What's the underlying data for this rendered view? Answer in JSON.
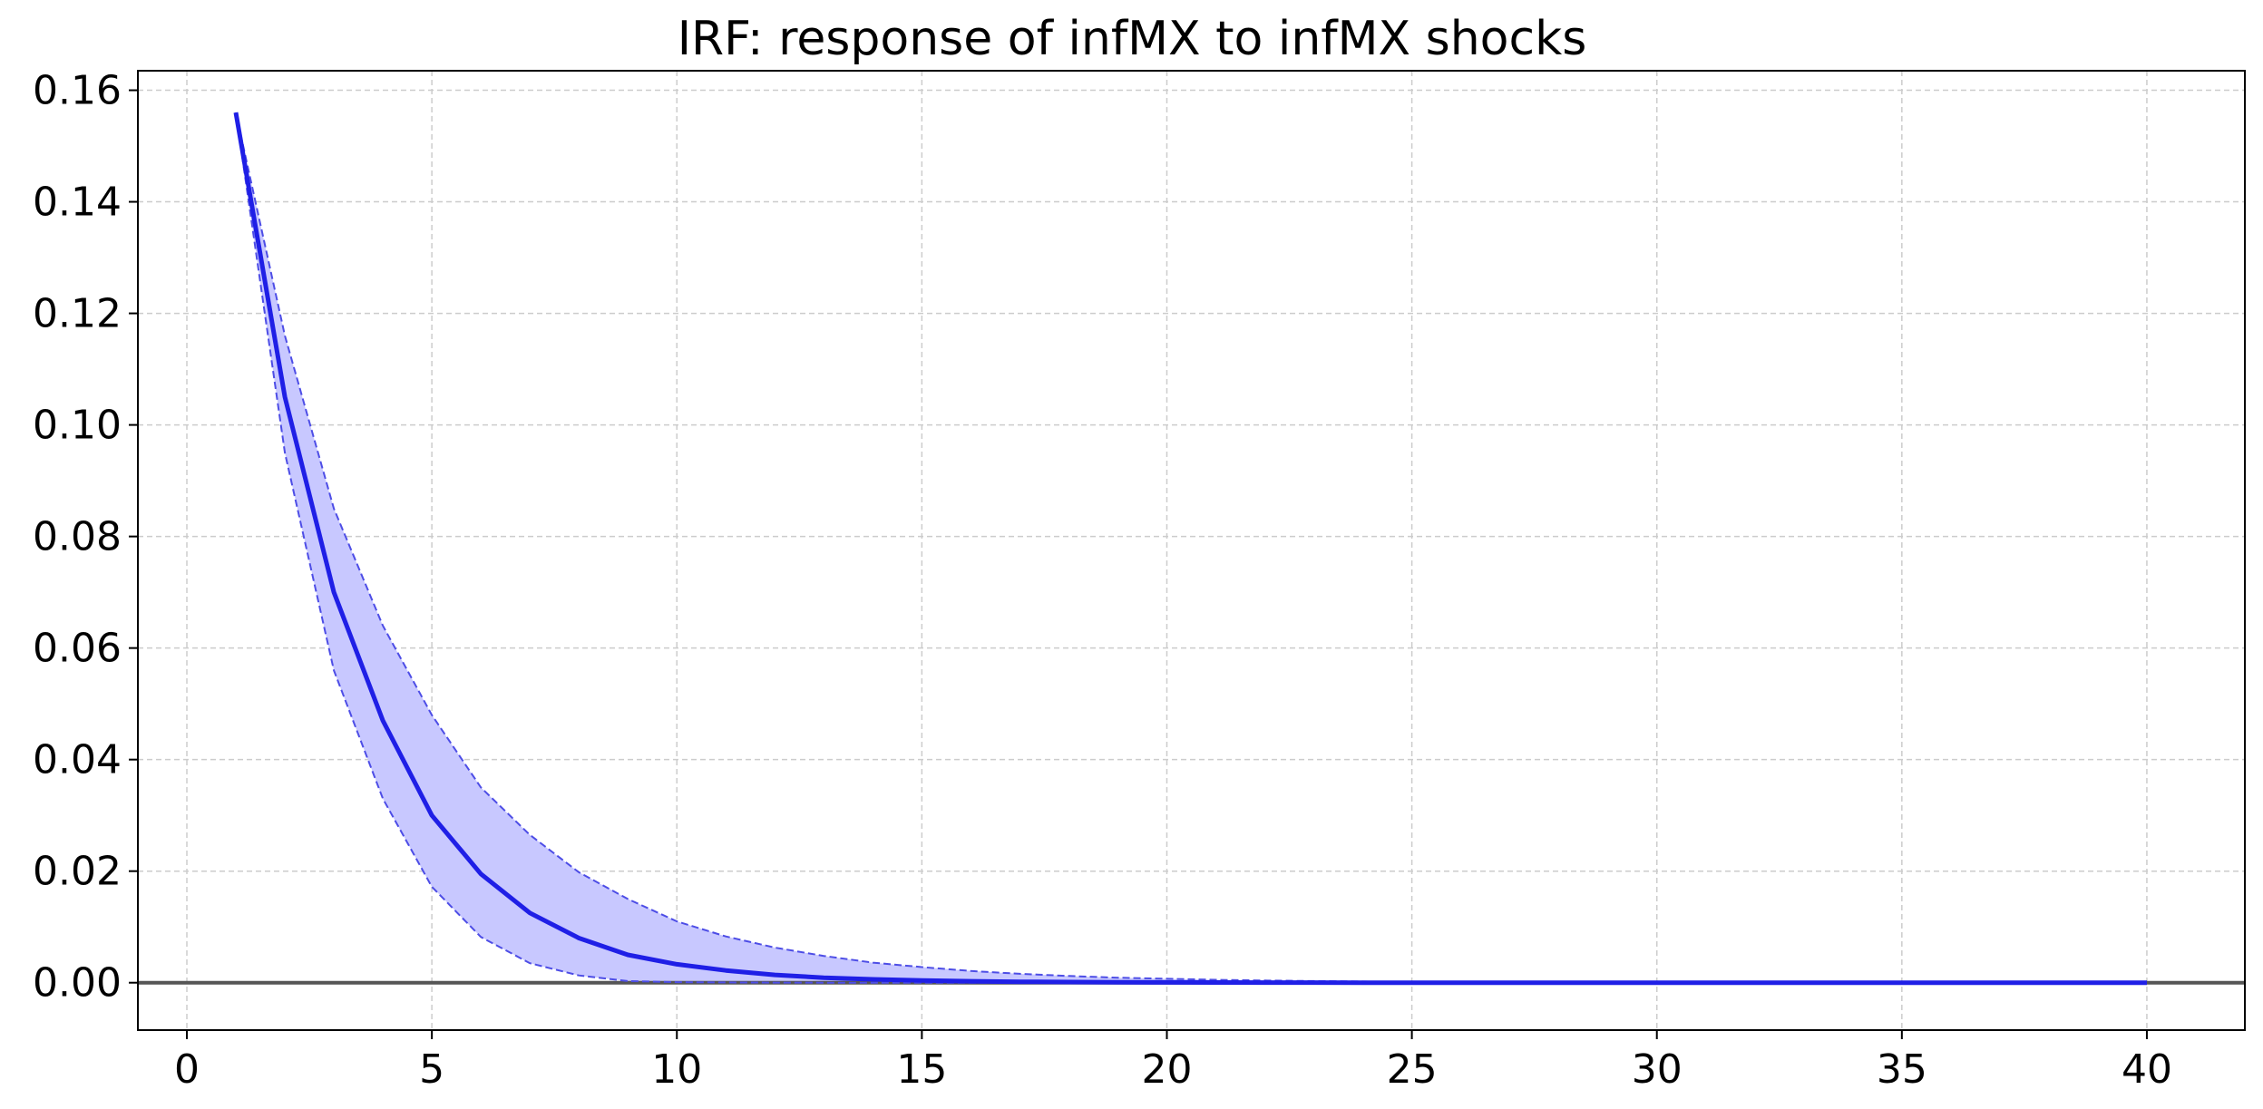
{
  "chart_data": {
    "type": "line",
    "title": "IRF: response of infMX to infMX shocks",
    "xlabel": "",
    "ylabel": "",
    "xlim": [
      -1,
      42
    ],
    "ylim": [
      -0.0085,
      0.1635
    ],
    "xticks": [
      0,
      5,
      10,
      15,
      20,
      25,
      30,
      35,
      40
    ],
    "yticks": [
      0.0,
      0.02,
      0.04,
      0.06,
      0.08,
      0.1,
      0.12,
      0.14,
      0.16
    ],
    "xtick_labels": [
      "0",
      "5",
      "10",
      "15",
      "20",
      "25",
      "30",
      "35",
      "40"
    ],
    "ytick_labels": [
      "0.00",
      "0.02",
      "0.04",
      "0.06",
      "0.08",
      "0.10",
      "0.12",
      "0.14",
      "0.16"
    ],
    "grid": true,
    "zero_line": 0,
    "colors": {
      "line": "#1f1fe6",
      "band_fill": "#c8c8ff",
      "band_edge": "#4d4de6",
      "zero_line": "#555555",
      "grid": "#cccccc"
    },
    "x": [
      1,
      2,
      3,
      4,
      5,
      6,
      7,
      8,
      9,
      10,
      11,
      12,
      13,
      14,
      15,
      16,
      17,
      18,
      19,
      20,
      21,
      22,
      23,
      24,
      25,
      26,
      27,
      28,
      29,
      30,
      31,
      32,
      33,
      34,
      35,
      36,
      37,
      38,
      39,
      40
    ],
    "series": [
      {
        "role": "irf",
        "values": [
          0.156,
          0.105,
          0.07,
          0.047,
          0.03,
          0.0195,
          0.0125,
          0.008,
          0.005,
          0.0033,
          0.0022,
          0.0014,
          0.0009,
          0.0006,
          0.0004,
          0.00026,
          0.00017,
          0.00011,
          7e-05,
          5e-05,
          3e-05,
          2e-05,
          1.3e-05,
          8e-06,
          5e-06,
          3e-06,
          2e-06,
          1.3e-06,
          8e-07,
          5e-07,
          3e-07,
          2e-07,
          1e-07,
          1e-07,
          0,
          0,
          0,
          0,
          0,
          0
        ]
      },
      {
        "role": "upper",
        "values": [
          0.156,
          0.116,
          0.085,
          0.064,
          0.048,
          0.035,
          0.0265,
          0.0198,
          0.015,
          0.011,
          0.0083,
          0.0063,
          0.0048,
          0.0036,
          0.0028,
          0.0021,
          0.0016,
          0.0012,
          0.0009,
          0.0007,
          0.00052,
          0.0004,
          0.0003,
          0.00022,
          0.00017,
          0.00013,
          0.0001,
          7e-05,
          5e-05,
          4e-05,
          3e-05,
          2e-05,
          1.5e-05,
          1.1e-05,
          8e-06,
          6e-06,
          4.5e-06,
          3.4e-06,
          2.5e-06,
          1.9e-06
        ]
      },
      {
        "role": "lower",
        "values": [
          0.156,
          0.095,
          0.056,
          0.033,
          0.0172,
          0.0082,
          0.0035,
          0.0013,
          0.0003,
          0.0001,
          5e-05,
          2e-05,
          1e-05,
          0,
          0,
          0,
          0,
          0,
          0,
          0,
          0,
          0,
          0,
          0,
          0,
          0,
          0,
          0,
          0,
          0,
          0,
          0,
          0,
          0,
          0,
          0,
          0,
          0,
          0,
          0
        ]
      }
    ]
  }
}
